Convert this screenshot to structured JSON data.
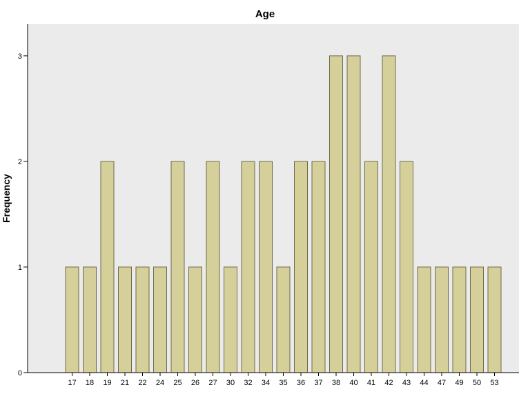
{
  "chart_data": {
    "type": "bar",
    "title": "Age",
    "xlabel": "",
    "ylabel": "Frequency",
    "ylim": [
      0,
      3.3
    ],
    "yticks": [
      0,
      1,
      2,
      3
    ],
    "grid": false,
    "categories": [
      "17",
      "18",
      "19",
      "21",
      "22",
      "24",
      "25",
      "26",
      "27",
      "30",
      "32",
      "34",
      "35",
      "36",
      "37",
      "38",
      "40",
      "41",
      "42",
      "43",
      "44",
      "47",
      "49",
      "50",
      "53"
    ],
    "values": [
      1,
      1,
      2,
      1,
      1,
      1,
      2,
      1,
      2,
      1,
      2,
      2,
      1,
      2,
      2,
      3,
      3,
      2,
      3,
      2,
      1,
      1,
      1,
      1,
      1
    ],
    "colors": {
      "plot_background": "#ebebeb",
      "bar_fill": "#d5cf9a",
      "bar_stroke": "#6b6b4a",
      "axis": "#000000"
    }
  }
}
